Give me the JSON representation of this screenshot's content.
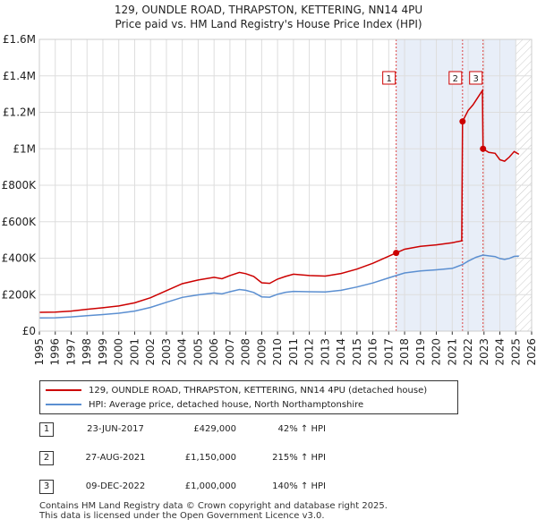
{
  "chart_data": {
    "type": "line",
    "title": "129, OUNDLE ROAD, THRAPSTON, KETTERING, NN14 4PU",
    "subtitle": "Price paid vs. HM Land Registry's House Price Index (HPI)",
    "xlabel": "",
    "ylabel": "",
    "xlim": [
      1995,
      2026
    ],
    "ylim": [
      0,
      1600000
    ],
    "y_ticks": [
      {
        "value": 0,
        "label": "£0"
      },
      {
        "value": 200000,
        "label": "£200K"
      },
      {
        "value": 400000,
        "label": "£400K"
      },
      {
        "value": 600000,
        "label": "£600K"
      },
      {
        "value": 800000,
        "label": "£800K"
      },
      {
        "value": 1000000,
        "label": "£1M"
      },
      {
        "value": 1200000,
        "label": "£1.2M"
      },
      {
        "value": 1400000,
        "label": "£1.4M"
      },
      {
        "value": 1600000,
        "label": "£1.6M"
      }
    ],
    "x_ticks": [
      "1995",
      "1996",
      "1997",
      "1998",
      "1999",
      "2000",
      "2001",
      "2002",
      "2003",
      "2004",
      "2005",
      "2006",
      "2007",
      "2008",
      "2009",
      "2010",
      "2011",
      "2012",
      "2013",
      "2014",
      "2015",
      "2016",
      "2017",
      "2018",
      "2019",
      "2020",
      "2021",
      "2022",
      "2023",
      "2024",
      "2025",
      "2026"
    ],
    "grid": true,
    "shaded_region": [
      2017.47,
      2025.0
    ],
    "hatched_region": [
      2025.0,
      2026
    ],
    "series": [
      {
        "name": "129, OUNDLE ROAD, THRAPSTON, KETTERING, NN14 4PU (detached house)",
        "color": "#cc0000",
        "x": [
          1995,
          1996,
          1997,
          1998,
          1999,
          2000,
          2001,
          2002,
          2003,
          2004,
          2005,
          2006,
          2006.5,
          2007,
          2007.6,
          2008,
          2008.5,
          2009,
          2009.5,
          2010,
          2010.5,
          2011,
          2012,
          2013,
          2014,
          2015,
          2016,
          2017,
          2017.47,
          2018,
          2019,
          2020,
          2021,
          2021.6,
          2021.65,
          2022,
          2022.3,
          2022.6,
          2022.9,
          2022.94,
          2023.3,
          2023.7,
          2024,
          2024.3,
          2024.6,
          2024.9,
          2025.2
        ],
        "values": [
          103000,
          104000,
          110000,
          120000,
          128000,
          138000,
          155000,
          183000,
          222000,
          260000,
          280000,
          295000,
          287000,
          305000,
          322000,
          315000,
          300000,
          265000,
          262000,
          285000,
          300000,
          312000,
          305000,
          302000,
          316000,
          340000,
          372000,
          411000,
          429000,
          449000,
          465000,
          473000,
          485000,
          495000,
          1150000,
          1210000,
          1240000,
          1280000,
          1320000,
          1000000,
          980000,
          975000,
          940000,
          932000,
          955000,
          985000,
          970000
        ]
      },
      {
        "name": "HPI: Average price, detached house, North Northamptonshire",
        "color": "#5b8fd1",
        "x": [
          1995,
          1996,
          1997,
          1998,
          1999,
          2000,
          2001,
          2002,
          2003,
          2004,
          2005,
          2006,
          2006.5,
          2007,
          2007.6,
          2008,
          2008.5,
          2009,
          2009.5,
          2010,
          2010.5,
          2011,
          2012,
          2013,
          2014,
          2015,
          2016,
          2017,
          2017.47,
          2018,
          2019,
          2020,
          2021,
          2021.65,
          2022,
          2022.5,
          2022.94,
          2023.3,
          2023.7,
          2024,
          2024.3,
          2024.6,
          2024.9,
          2025.2
        ],
        "values": [
          72000,
          73000,
          78000,
          85000,
          91000,
          98000,
          110000,
          130000,
          158000,
          185000,
          199000,
          209000,
          204000,
          216000,
          228000,
          224000,
          212000,
          188000,
          186000,
          202000,
          213000,
          218000,
          216000,
          215000,
          224000,
          242000,
          264000,
          292000,
          305000,
          319000,
          330000,
          336000,
          344000,
          365000,
          384000,
          405000,
          417000,
          413000,
          409000,
          398000,
          393000,
          399000,
          410000,
          412000
        ]
      }
    ],
    "sales": [
      {
        "label": "1",
        "x": 2017.47,
        "value": 429000
      },
      {
        "label": "2",
        "x": 2021.65,
        "value": 1150000
      },
      {
        "label": "3",
        "x": 2022.94,
        "value": 1000000
      }
    ]
  },
  "header": {
    "title": "129, OUNDLE ROAD, THRAPSTON, KETTERING, NN14 4PU",
    "subtitle": "Price paid vs. HM Land Registry's House Price Index (HPI)"
  },
  "legend": {
    "property_label": "129, OUNDLE ROAD, THRAPSTON, KETTERING, NN14 4PU (detached house)",
    "hpi_label": "HPI: Average price, detached house, North Northamptonshire",
    "property_color": "#cc0000",
    "hpi_color": "#5b8fd1"
  },
  "transactions": [
    {
      "num": "1",
      "date": "23-JUN-2017",
      "price": "£429,000",
      "hpi": "42% ↑ HPI"
    },
    {
      "num": "2",
      "date": "27-AUG-2021",
      "price": "£1,150,000",
      "hpi": "215% ↑ HPI"
    },
    {
      "num": "3",
      "date": "09-DEC-2022",
      "price": "£1,000,000",
      "hpi": "140% ↑ HPI"
    }
  ],
  "footer": {
    "line1": "Contains HM Land Registry data © Crown copyright and database right 2025.",
    "line2": "This data is licensed under the Open Government Licence v3.0."
  }
}
